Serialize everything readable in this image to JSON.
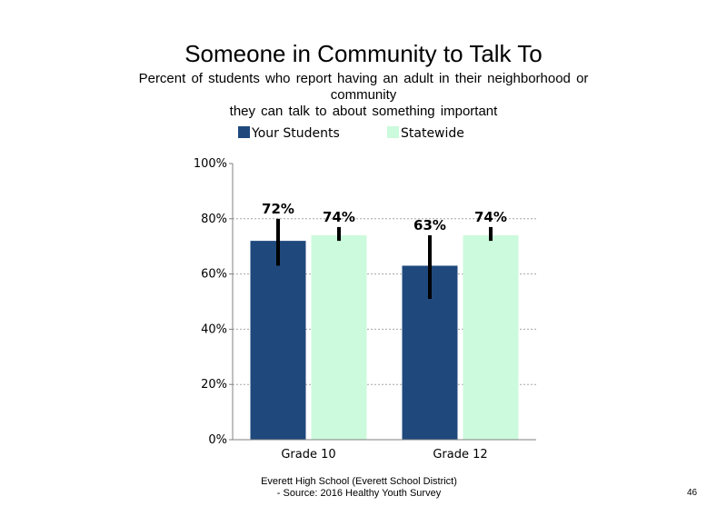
{
  "slide": {
    "title": "Someone in Community to Talk To",
    "subtitle_line1": "Percent of students who report having an adult in their neighborhood or",
    "subtitle_line2": "community",
    "subtitle_line3": "they can talk to about something important",
    "footer_line1": "Everett High School (Everett School District)",
    "footer_line2": "- Source: 2016 Healthy Youth Survey",
    "page_number": "46"
  },
  "colors": {
    "your_students": "#1f497d",
    "statewide": "#ccfadc",
    "error_bar": "#000000",
    "grid": "#a6a6a6"
  },
  "chart_data": {
    "type": "bar",
    "categories": [
      "Grade 10",
      "Grade 12"
    ],
    "series": [
      {
        "name": "Your Students",
        "values": [
          72,
          63
        ],
        "labels": [
          "72%",
          "63%"
        ],
        "ci_low": [
          63,
          51
        ],
        "ci_high": [
          80,
          74
        ]
      },
      {
        "name": "Statewide",
        "values": [
          74,
          74
        ],
        "labels": [
          "74%",
          "74%"
        ],
        "ci_low": [
          72,
          72
        ],
        "ci_high": [
          77,
          77
        ]
      }
    ],
    "ylim": [
      0,
      100
    ],
    "yticks": [
      0,
      20,
      40,
      60,
      80,
      100
    ],
    "ytick_labels": [
      "0%",
      "20%",
      "40%",
      "60%",
      "80%",
      "100%"
    ],
    "grid": true,
    "legend_position": "top",
    "title": "Someone in Community to Talk To"
  }
}
